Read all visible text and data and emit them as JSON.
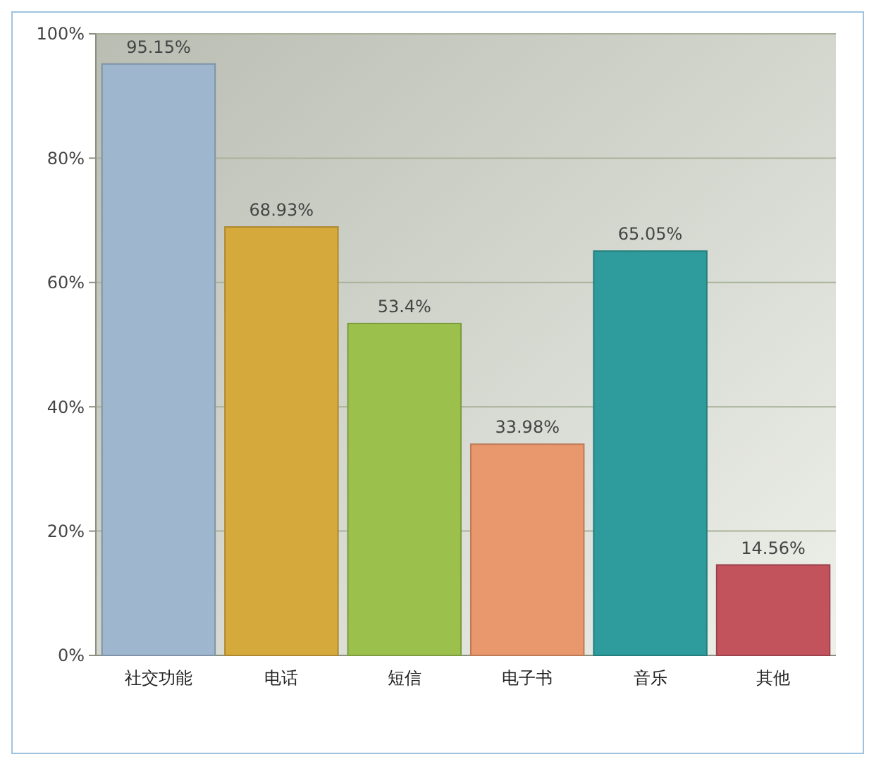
{
  "chart_data": {
    "type": "bar",
    "categories": [
      "社交功能",
      "电话",
      "短信",
      "电子书",
      "音乐",
      "其他"
    ],
    "values": [
      95.15,
      68.93,
      53.4,
      33.98,
      65.05,
      14.56
    ],
    "value_labels": [
      "95.15%",
      "68.93%",
      "53.4%",
      "33.98%",
      "65.05%",
      "14.56%"
    ],
    "colors": [
      "#9fb6cf",
      "#d6a93c",
      "#9cc04c",
      "#e9976c",
      "#2e9c9c",
      "#c2525c"
    ],
    "ylim": [
      0,
      100
    ],
    "yticks": [
      {
        "value": 0,
        "label": "0%"
      },
      {
        "value": 20,
        "label": "20%"
      },
      {
        "value": 40,
        "label": "40%"
      },
      {
        "value": 60,
        "label": "60%"
      },
      {
        "value": 80,
        "label": "80%"
      },
      {
        "value": 100,
        "label": "100%"
      }
    ],
    "grid": "y"
  }
}
